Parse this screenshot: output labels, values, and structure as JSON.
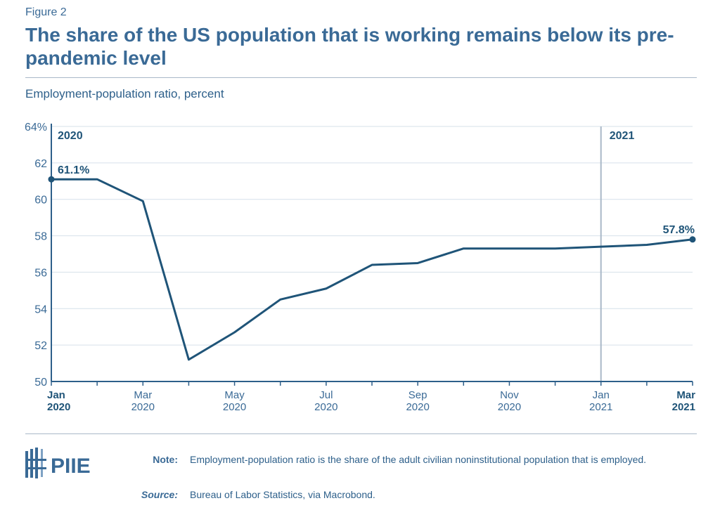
{
  "figure_label": "Figure 2",
  "title": "The share of the US population that is working remains below its pre-pandemic level",
  "subtitle": "Employment-population ratio, percent",
  "chart_data": {
    "type": "line",
    "ylabel": "Employment-population ratio, percent",
    "ylim": [
      50,
      64
    ],
    "yticks": [
      "50",
      "52",
      "54",
      "56",
      "58",
      "60",
      "62",
      "64%"
    ],
    "grid": true,
    "x": [
      "Jan 2020",
      "Feb 2020",
      "Mar 2020",
      "Apr 2020",
      "May 2020",
      "Jun 2020",
      "Jul 2020",
      "Aug 2020",
      "Sep 2020",
      "Oct 2020",
      "Nov 2020",
      "Dec 2020",
      "Jan 2021",
      "Feb 2021",
      "Mar 2021"
    ],
    "values": [
      61.1,
      61.1,
      59.9,
      51.2,
      52.7,
      54.5,
      55.1,
      56.4,
      56.5,
      57.3,
      57.3,
      57.3,
      57.4,
      57.5,
      57.8
    ],
    "xtick_labels": [
      {
        "month": "Jan",
        "year": "2020",
        "bold": true
      },
      {
        "month": "Mar",
        "year": "2020"
      },
      {
        "month": "May",
        "year": "2020"
      },
      {
        "month": "Jul",
        "year": "2020"
      },
      {
        "month": "Sep",
        "year": "2020"
      },
      {
        "month": "Nov",
        "year": "2020"
      },
      {
        "month": "Jan",
        "year": "2021"
      },
      {
        "month": "Mar",
        "year": "2021",
        "bold": true
      }
    ],
    "annotations": {
      "start": "61.1%",
      "end": "57.8%",
      "year1": "2020",
      "year2": "2021"
    },
    "line_color": "#1f5478"
  },
  "logo_text": "PIIE",
  "note_label": "Note:",
  "note_text": "Employment-population ratio is the share of the adult civilian noninstitutional population that is employed.",
  "source_label": "Source:",
  "source_text": "Bureau of Labor Statistics, via Macrobond."
}
